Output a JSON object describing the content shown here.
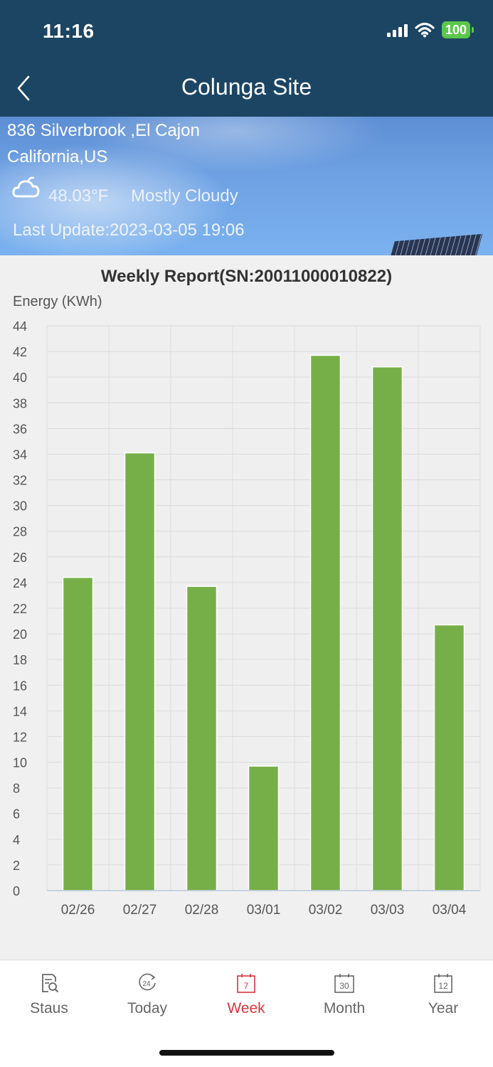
{
  "status_bar": {
    "time": "11:16",
    "battery": "100"
  },
  "header": {
    "title": "Colunga Site"
  },
  "site": {
    "address_line1": "836 Silverbrook ,El Cajon",
    "address_line2": "California,US",
    "temperature": "48.03°F",
    "condition": "Mostly Cloudy",
    "last_update": "Last Update:2023-03-05 19:06"
  },
  "colors": {
    "header_bg": "#1c4563",
    "bar": "#76af47",
    "active_tab": "#d9353d"
  },
  "chart_data": {
    "type": "bar",
    "title": "Weekly Report(SN:20011000010822)",
    "ylabel": "Energy (KWh)",
    "xlabel": "",
    "categories": [
      "02/26",
      "02/27",
      "02/28",
      "03/01",
      "03/02",
      "03/03",
      "03/04"
    ],
    "values": [
      24.4,
      34.1,
      23.7,
      9.7,
      41.7,
      40.8,
      20.7
    ],
    "ylim": [
      0,
      44
    ],
    "yticks": [
      0,
      2,
      4,
      6,
      8,
      10,
      12,
      14,
      16,
      18,
      20,
      22,
      24,
      26,
      28,
      30,
      32,
      34,
      36,
      38,
      40,
      42,
      44
    ],
    "grid": true
  },
  "tabs": [
    {
      "label": "Staus",
      "icon": "report-search-icon",
      "badge": ""
    },
    {
      "label": "Today",
      "icon": "clock-24-icon",
      "badge": "24"
    },
    {
      "label": "Week",
      "icon": "calendar-week-icon",
      "badge": "7",
      "active": true
    },
    {
      "label": "Month",
      "icon": "calendar-month-icon",
      "badge": "30"
    },
    {
      "label": "Year",
      "icon": "calendar-year-icon",
      "badge": "12"
    }
  ]
}
